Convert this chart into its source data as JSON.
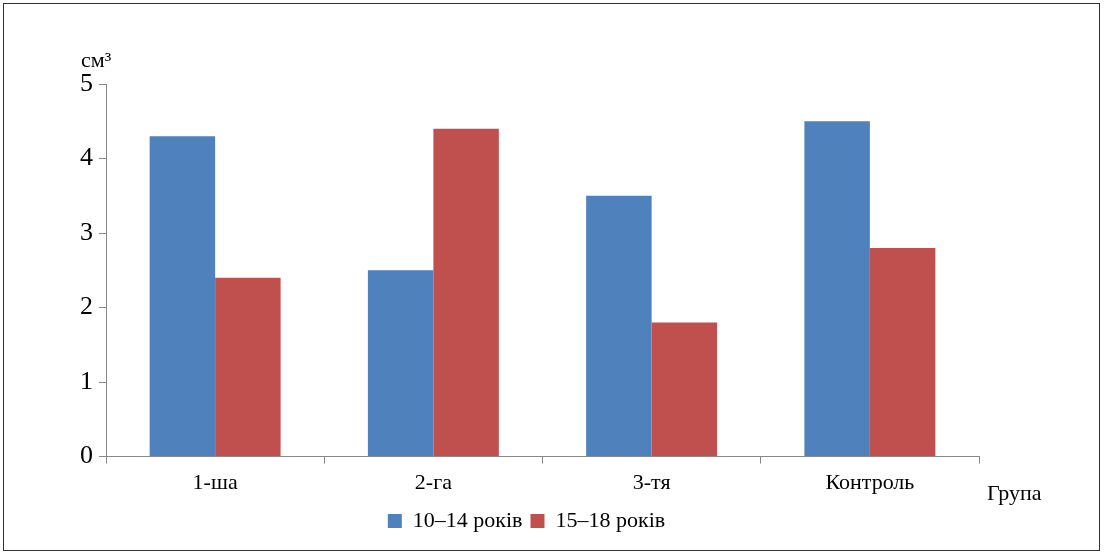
{
  "chart_data": {
    "type": "bar",
    "ylabel": "см³",
    "xlabel": "Група",
    "categories": [
      "1-ша",
      "2-га",
      "3-тя",
      "Контроль"
    ],
    "series": [
      {
        "name": "10–14 років",
        "color": "#4f81bd",
        "values": [
          4.3,
          2.5,
          3.5,
          4.5
        ]
      },
      {
        "name": "15–18 років",
        "color": "#c0504d",
        "values": [
          2.4,
          4.4,
          1.8,
          2.8
        ]
      }
    ],
    "ylim": [
      0,
      5
    ],
    "yticks": [
      0,
      1,
      2,
      3,
      4,
      5
    ],
    "grid": false,
    "legend": "bottom"
  }
}
